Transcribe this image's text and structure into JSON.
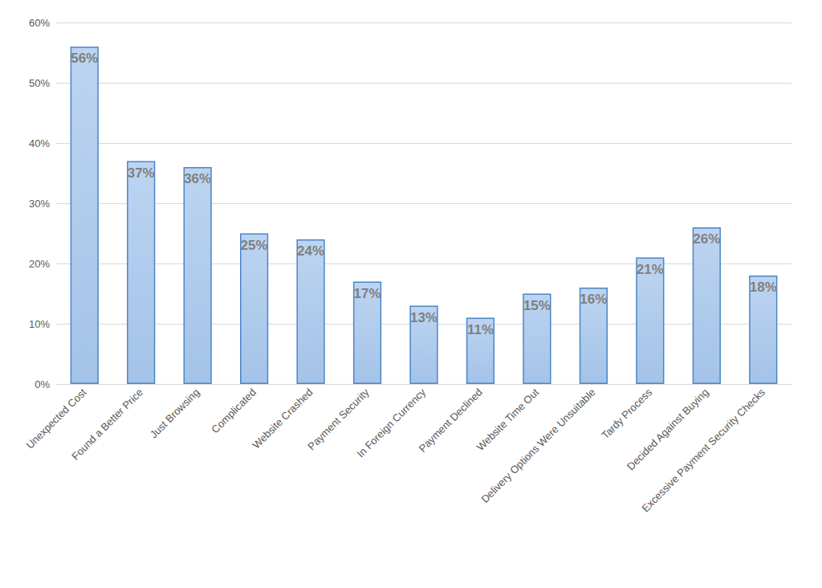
{
  "chart_data": {
    "type": "bar",
    "categories": [
      "Unexpected Cost",
      "Found a Better Price",
      "Just Browsing",
      "Complicated",
      "Website Crashed",
      "Payment Security",
      "In Foreign Currency",
      "Payment Declined",
      "Website Time Out",
      "Delivery Options Were Unsuitable",
      "Tardy Process",
      "Decided Against Buying",
      "Excessive Payment Security Checks"
    ],
    "values": [
      56,
      37,
      36,
      25,
      24,
      17,
      13,
      11,
      15,
      16,
      21,
      26,
      18
    ],
    "value_labels": [
      "56%",
      "37%",
      "36%",
      "25%",
      "24%",
      "17%",
      "13%",
      "11%",
      "15%",
      "16%",
      "21%",
      "26%",
      "18%"
    ],
    "color": "#a4c3e8",
    "ylim": [
      0,
      60
    ],
    "yticks": [
      {
        "value": 0,
        "label": "0%"
      },
      {
        "value": 10,
        "label": "10%"
      },
      {
        "value": 20,
        "label": "20%"
      },
      {
        "value": 30,
        "label": "30%"
      },
      {
        "value": 40,
        "label": "40%"
      },
      {
        "value": 50,
        "label": "50%"
      },
      {
        "value": 60,
        "label": "60%"
      }
    ],
    "grid": true,
    "data_labels": true
  }
}
